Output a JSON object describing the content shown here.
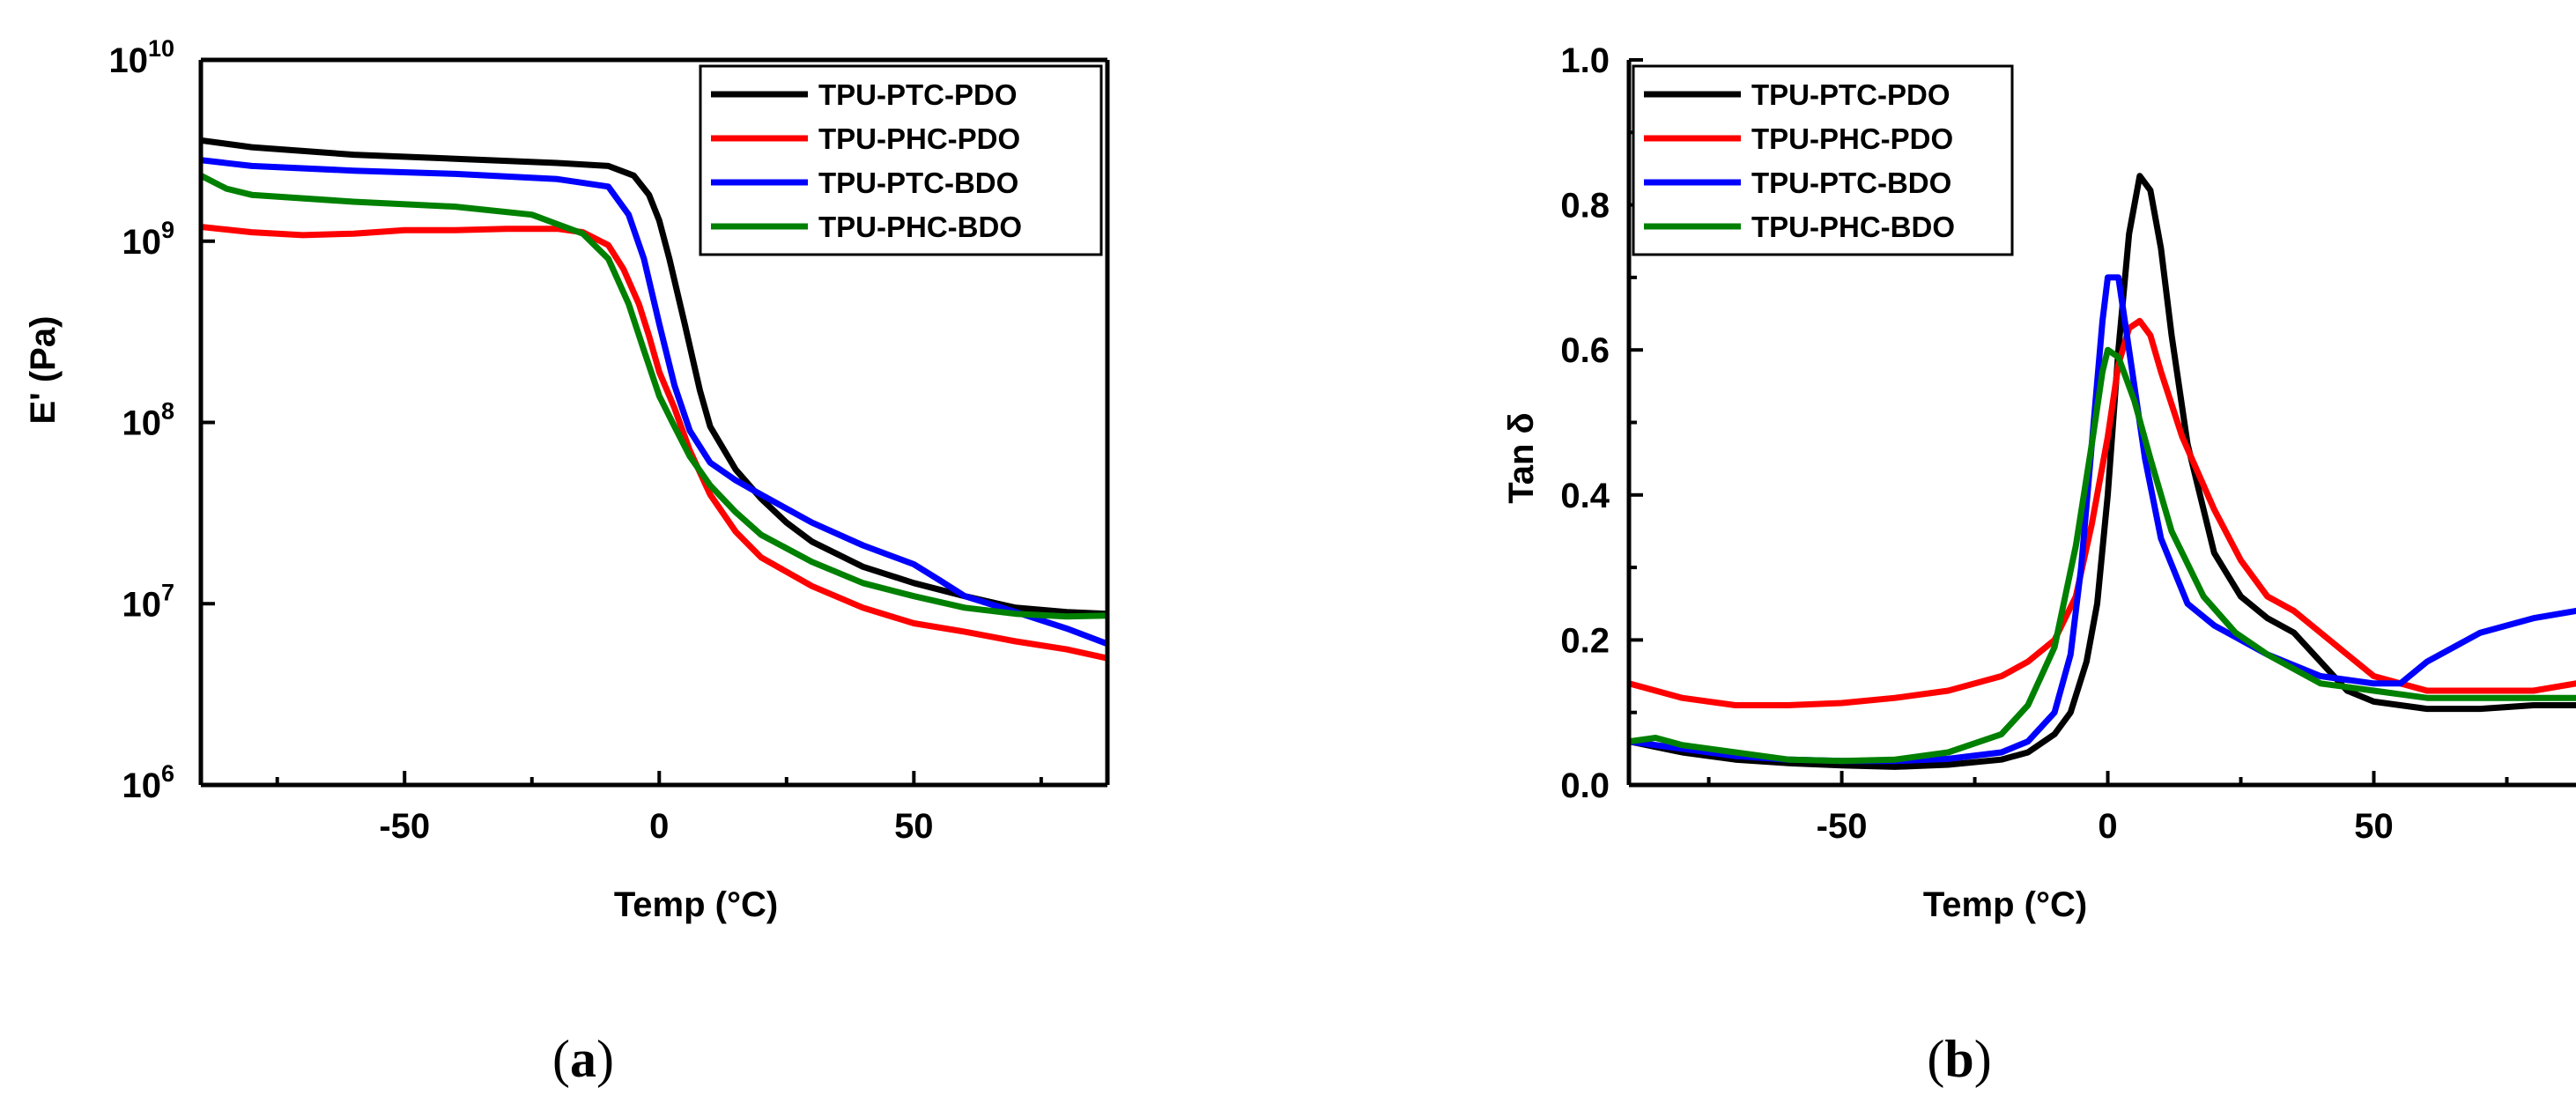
{
  "chart_data": [
    {
      "panel": "a",
      "type": "line",
      "caption_open": "(",
      "caption_letter": "a",
      "caption_close": ")",
      "xlabel": "Temp (°C)",
      "ylabel": "E' (Pa)",
      "yscale": "log",
      "xlim": [
        -90,
        88
      ],
      "ylim": [
        1000000,
        10000000000
      ],
      "xticks": [
        -50,
        0,
        50
      ],
      "xtick_labels": [
        "-50",
        "0",
        "50"
      ],
      "yticks": [
        1000000,
        10000000,
        100000000,
        1000000000,
        10000000000
      ],
      "ytick_labels": [
        {
          "base": "10",
          "exp": "6"
        },
        {
          "base": "10",
          "exp": "7"
        },
        {
          "base": "10",
          "exp": "8"
        },
        {
          "base": "10",
          "exp": "9"
        },
        {
          "base": "10",
          "exp": "10"
        }
      ],
      "legend_position": "top-right",
      "series": [
        {
          "name": "TPU-PTC-PDO",
          "color": "#000000",
          "x": [
            -90,
            -80,
            -60,
            -40,
            -20,
            -10,
            -5,
            -2,
            0,
            2,
            5,
            8,
            10,
            15,
            20,
            25,
            30,
            40,
            50,
            60,
            70,
            80,
            88
          ],
          "y": [
            3600000000,
            3300000000,
            3000000000,
            2850000000,
            2700000000,
            2600000000,
            2300000000,
            1800000000,
            1300000000,
            800000000,
            350000000,
            150000000,
            95000000,
            55000000,
            38000000,
            28000000,
            22000000,
            16000000,
            13000000,
            11000000,
            9500000,
            9000000,
            8800000
          ]
        },
        {
          "name": "TPU-PHC-PDO",
          "color": "#ff0000",
          "x": [
            -90,
            -80,
            -70,
            -60,
            -50,
            -40,
            -30,
            -20,
            -15,
            -10,
            -7,
            -4,
            -2,
            0,
            3,
            6,
            10,
            15,
            20,
            30,
            40,
            50,
            60,
            70,
            80,
            88
          ],
          "y": [
            1200000000,
            1120000000,
            1080000000,
            1100000000,
            1150000000,
            1150000000,
            1170000000,
            1170000000,
            1120000000,
            950000000,
            700000000,
            450000000,
            300000000,
            190000000,
            120000000,
            70000000,
            40000000,
            25000000,
            18000000,
            12500000,
            9500000,
            7800000,
            7000000,
            6200000,
            5600000,
            5000000
          ]
        },
        {
          "name": "TPU-PTC-BDO",
          "color": "#0000ff",
          "x": [
            -90,
            -80,
            -60,
            -40,
            -20,
            -10,
            -6,
            -3,
            0,
            3,
            6,
            10,
            15,
            20,
            30,
            40,
            50,
            55,
            60,
            70,
            80,
            88
          ],
          "y": [
            2800000000,
            2600000000,
            2450000000,
            2350000000,
            2200000000,
            2000000000,
            1400000000,
            800000000,
            350000000,
            160000000,
            90000000,
            60000000,
            48000000,
            40000000,
            28000000,
            21000000,
            16500000,
            13500000,
            11000000,
            9000000,
            7300000,
            6000000
          ]
        },
        {
          "name": "TPU-PHC-BDO",
          "color": "#008000",
          "x": [
            -90,
            -85,
            -80,
            -60,
            -40,
            -25,
            -15,
            -10,
            -6,
            -3,
            0,
            3,
            6,
            10,
            15,
            20,
            30,
            40,
            50,
            60,
            70,
            80,
            88
          ],
          "y": [
            2300000000,
            1950000000,
            1800000000,
            1650000000,
            1550000000,
            1400000000,
            1100000000,
            800000000,
            450000000,
            250000000,
            140000000,
            95000000,
            65000000,
            45000000,
            32000000,
            24000000,
            17000000,
            13000000,
            11000000,
            9500000,
            8800000,
            8500000,
            8600000
          ]
        }
      ]
    },
    {
      "panel": "b",
      "type": "line",
      "caption_open": "(",
      "caption_letter": "b",
      "caption_close": ")",
      "xlabel": "Temp (°C)",
      "ylabel": "Tan δ",
      "yscale": "linear",
      "xlim": [
        -90,
        88
      ],
      "ylim": [
        0,
        1.0
      ],
      "xticks": [
        -50,
        0,
        50
      ],
      "xtick_labels": [
        "-50",
        "0",
        "50"
      ],
      "yticks": [
        0,
        0.2,
        0.4,
        0.6,
        0.8,
        1.0
      ],
      "ytick_labels": [
        "0.0",
        "0.2",
        "0.4",
        "0.6",
        "0.8",
        "1.0"
      ],
      "legend_position": "top-left",
      "series": [
        {
          "name": "TPU-PTC-PDO",
          "color": "#000000",
          "x": [
            -90,
            -80,
            -70,
            -60,
            -50,
            -40,
            -30,
            -20,
            -15,
            -10,
            -7,
            -4,
            -2,
            0,
            2,
            4,
            6,
            8,
            10,
            12,
            15,
            20,
            25,
            30,
            35,
            40,
            45,
            50,
            55,
            60,
            70,
            80,
            88
          ],
          "y": [
            0.06,
            0.045,
            0.035,
            0.03,
            0.027,
            0.025,
            0.028,
            0.035,
            0.045,
            0.07,
            0.1,
            0.17,
            0.25,
            0.4,
            0.6,
            0.76,
            0.84,
            0.82,
            0.74,
            0.62,
            0.47,
            0.32,
            0.26,
            0.23,
            0.21,
            0.17,
            0.13,
            0.115,
            0.11,
            0.105,
            0.105,
            0.11,
            0.11
          ]
        },
        {
          "name": "TPU-PHC-PDO",
          "color": "#ff0000",
          "x": [
            -90,
            -80,
            -70,
            -60,
            -50,
            -40,
            -30,
            -25,
            -20,
            -15,
            -10,
            -6,
            -3,
            0,
            2,
            4,
            6,
            8,
            10,
            14,
            20,
            25,
            30,
            35,
            40,
            45,
            50,
            55,
            60,
            70,
            80,
            88
          ],
          "y": [
            0.14,
            0.12,
            0.11,
            0.11,
            0.113,
            0.12,
            0.13,
            0.14,
            0.15,
            0.17,
            0.2,
            0.26,
            0.36,
            0.48,
            0.58,
            0.63,
            0.64,
            0.62,
            0.57,
            0.48,
            0.38,
            0.31,
            0.26,
            0.24,
            0.21,
            0.18,
            0.15,
            0.14,
            0.13,
            0.13,
            0.13,
            0.14
          ]
        },
        {
          "name": "TPU-PTC-BDO",
          "color": "#0000ff",
          "x": [
            -90,
            -80,
            -70,
            -60,
            -50,
            -40,
            -30,
            -20,
            -15,
            -10,
            -7,
            -5,
            -3,
            -1,
            0,
            2,
            4,
            7,
            10,
            15,
            20,
            25,
            30,
            40,
            50,
            55,
            60,
            70,
            80,
            88
          ],
          "y": [
            0.06,
            0.05,
            0.04,
            0.035,
            0.033,
            0.033,
            0.036,
            0.045,
            0.06,
            0.1,
            0.18,
            0.3,
            0.47,
            0.64,
            0.7,
            0.7,
            0.6,
            0.45,
            0.34,
            0.25,
            0.22,
            0.2,
            0.18,
            0.15,
            0.14,
            0.14,
            0.17,
            0.21,
            0.23,
            0.24
          ]
        },
        {
          "name": "TPU-PHC-BDO",
          "color": "#008000",
          "x": [
            -90,
            -85,
            -80,
            -70,
            -60,
            -50,
            -40,
            -30,
            -20,
            -15,
            -10,
            -6,
            -3,
            -1,
            0,
            2,
            5,
            8,
            12,
            18,
            24,
            30,
            40,
            50,
            60,
            70,
            80,
            88
          ],
          "y": [
            0.06,
            0.065,
            0.055,
            0.045,
            0.035,
            0.033,
            0.035,
            0.045,
            0.07,
            0.11,
            0.19,
            0.33,
            0.47,
            0.57,
            0.6,
            0.59,
            0.53,
            0.45,
            0.35,
            0.26,
            0.21,
            0.18,
            0.14,
            0.13,
            0.12,
            0.12,
            0.12,
            0.12
          ]
        }
      ]
    }
  ]
}
